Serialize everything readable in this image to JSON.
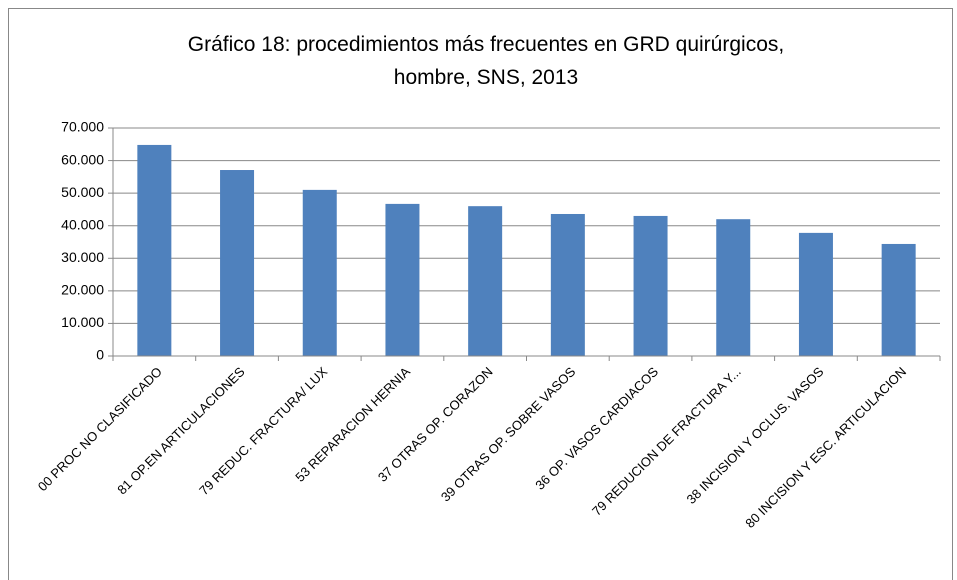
{
  "chart_data": {
    "type": "bar",
    "title": [
      "Gráfico 18: procedimientos más frecuentes en GRD quirúrgicos,",
      "hombre, SNS, 2013"
    ],
    "categories": [
      "00 PROC NO CLASIFICADO",
      "81 OP.EN ARTICULACIONES",
      "79 REDUC. FRACTURA/ LUX",
      "53 REPARACION HERNIA",
      "37 OTRAS OP. CORAZON",
      "39 OTRAS OP. SOBRE VASOS",
      "36 OP. VASOS CARDIACOS",
      "79 REDUCION DE FRACTURA Y...",
      "38 INCISION Y OCLUS. VASOS",
      "80 INCISION Y ESC. ARTICULACION"
    ],
    "values": [
      64800,
      57100,
      51000,
      46700,
      46000,
      43600,
      43000,
      42000,
      37800,
      34400
    ],
    "color": "#4f81bd",
    "ylim": [
      0,
      70000
    ],
    "yticks": [
      0,
      {
        "value": 10000,
        "label": "10.000"
      },
      {
        "value": 20000,
        "label": "20.000"
      },
      {
        "value": 30000,
        "label": "30.000"
      },
      {
        "value": 40000,
        "label": "40.000"
      },
      {
        "value": 50000,
        "label": "50.000"
      },
      {
        "value": 60000,
        "label": "60.000"
      },
      {
        "value": 70000,
        "label": "70.000"
      }
    ],
    "grid": true
  }
}
